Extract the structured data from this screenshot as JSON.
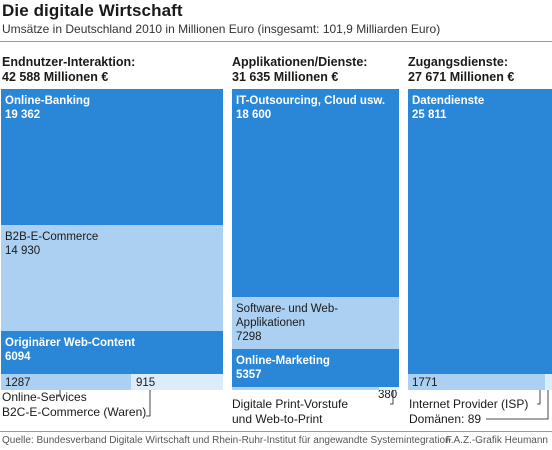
{
  "chart_data": {
    "type": "bar",
    "title": "Die digitale Wirtschaft",
    "subtitle": "Umsätze in Deutschland 2010 in Millionen Euro (insgesamt: 101,9 Milliarden Euro)",
    "columns": [
      {
        "heading": "Endnutzer-Interaktion:",
        "total_label": "42 588 Millionen €",
        "total": 42588,
        "segments": [
          {
            "name": "Online-Banking",
            "value": 19362,
            "value_label": "19 362"
          },
          {
            "name": "B2B-E-Commerce",
            "value": 14930,
            "value_label": "14 930"
          },
          {
            "name": "Originärer Web-Content",
            "value": 6094,
            "value_label": "6094"
          },
          {
            "name": "Online-Services",
            "value": 1287,
            "value_label": "1287"
          },
          {
            "name": "B2C-E-Commerce (Waren)",
            "value": 915,
            "value_label": "915"
          }
        ]
      },
      {
        "heading": "Applikationen/Dienste:",
        "total_label": "31 635 Millionen €",
        "total": 31635,
        "segments": [
          {
            "name": "IT-Outsourcing, Cloud usw.",
            "value": 18600,
            "value_label": "18 600"
          },
          {
            "name": "Software- und Web-Applikationen",
            "value": 7298,
            "value_label": "7298"
          },
          {
            "name": "Online-Marketing",
            "value": 5357,
            "value_label": "5357"
          },
          {
            "name": "Digitale Print-Vorstufe und Web-to-Print",
            "value": 380,
            "value_label": "380"
          }
        ]
      },
      {
        "heading": "Zugangsdienste:",
        "total_label": "27 671 Millionen €",
        "total": 27671,
        "segments": [
          {
            "name": "Datendienste",
            "value": 25811,
            "value_label": "25 811"
          },
          {
            "name": "Internet Provider (ISP)",
            "value": 1771,
            "value_label": "1771"
          },
          {
            "name": "Domänen",
            "value": 89,
            "value_label": "89"
          }
        ]
      }
    ]
  },
  "texts": {
    "col0_seg0_label": "Online-Banking",
    "col0_seg1_label": "B2B-E-Commerce",
    "col0_seg2_label": "Originärer Web-Content",
    "col1_seg0_label": "IT-Outsourcing, Cloud usw.",
    "col1_seg1_label_l1": "Software- und Web-",
    "col1_seg1_label_l2": "Applikationen",
    "col1_seg2_label": "Online-Marketing",
    "col2_seg0_label": "Datendienste",
    "callout_col0_a": "Online-Services",
    "callout_col0_b": "B2C-E-Commerce (Waren)",
    "callout_col1_a": "Digitale Print-Vorstufe",
    "callout_col1_b": "und Web-to-Print",
    "callout_col2_a": "Internet Provider (ISP)",
    "callout_col2_b": "Domänen: 89"
  },
  "footer": {
    "source": "Quelle: Bundesverband Digitale Wirtschaft und Rhein-Ruhr-Institut für angewandte Systemintegration",
    "credit": "F.A.Z.-Grafik Heumann"
  },
  "colors": {
    "dark": "#2a86d6",
    "light": "#abd0f2",
    "lighter": "#dcecfa"
  }
}
